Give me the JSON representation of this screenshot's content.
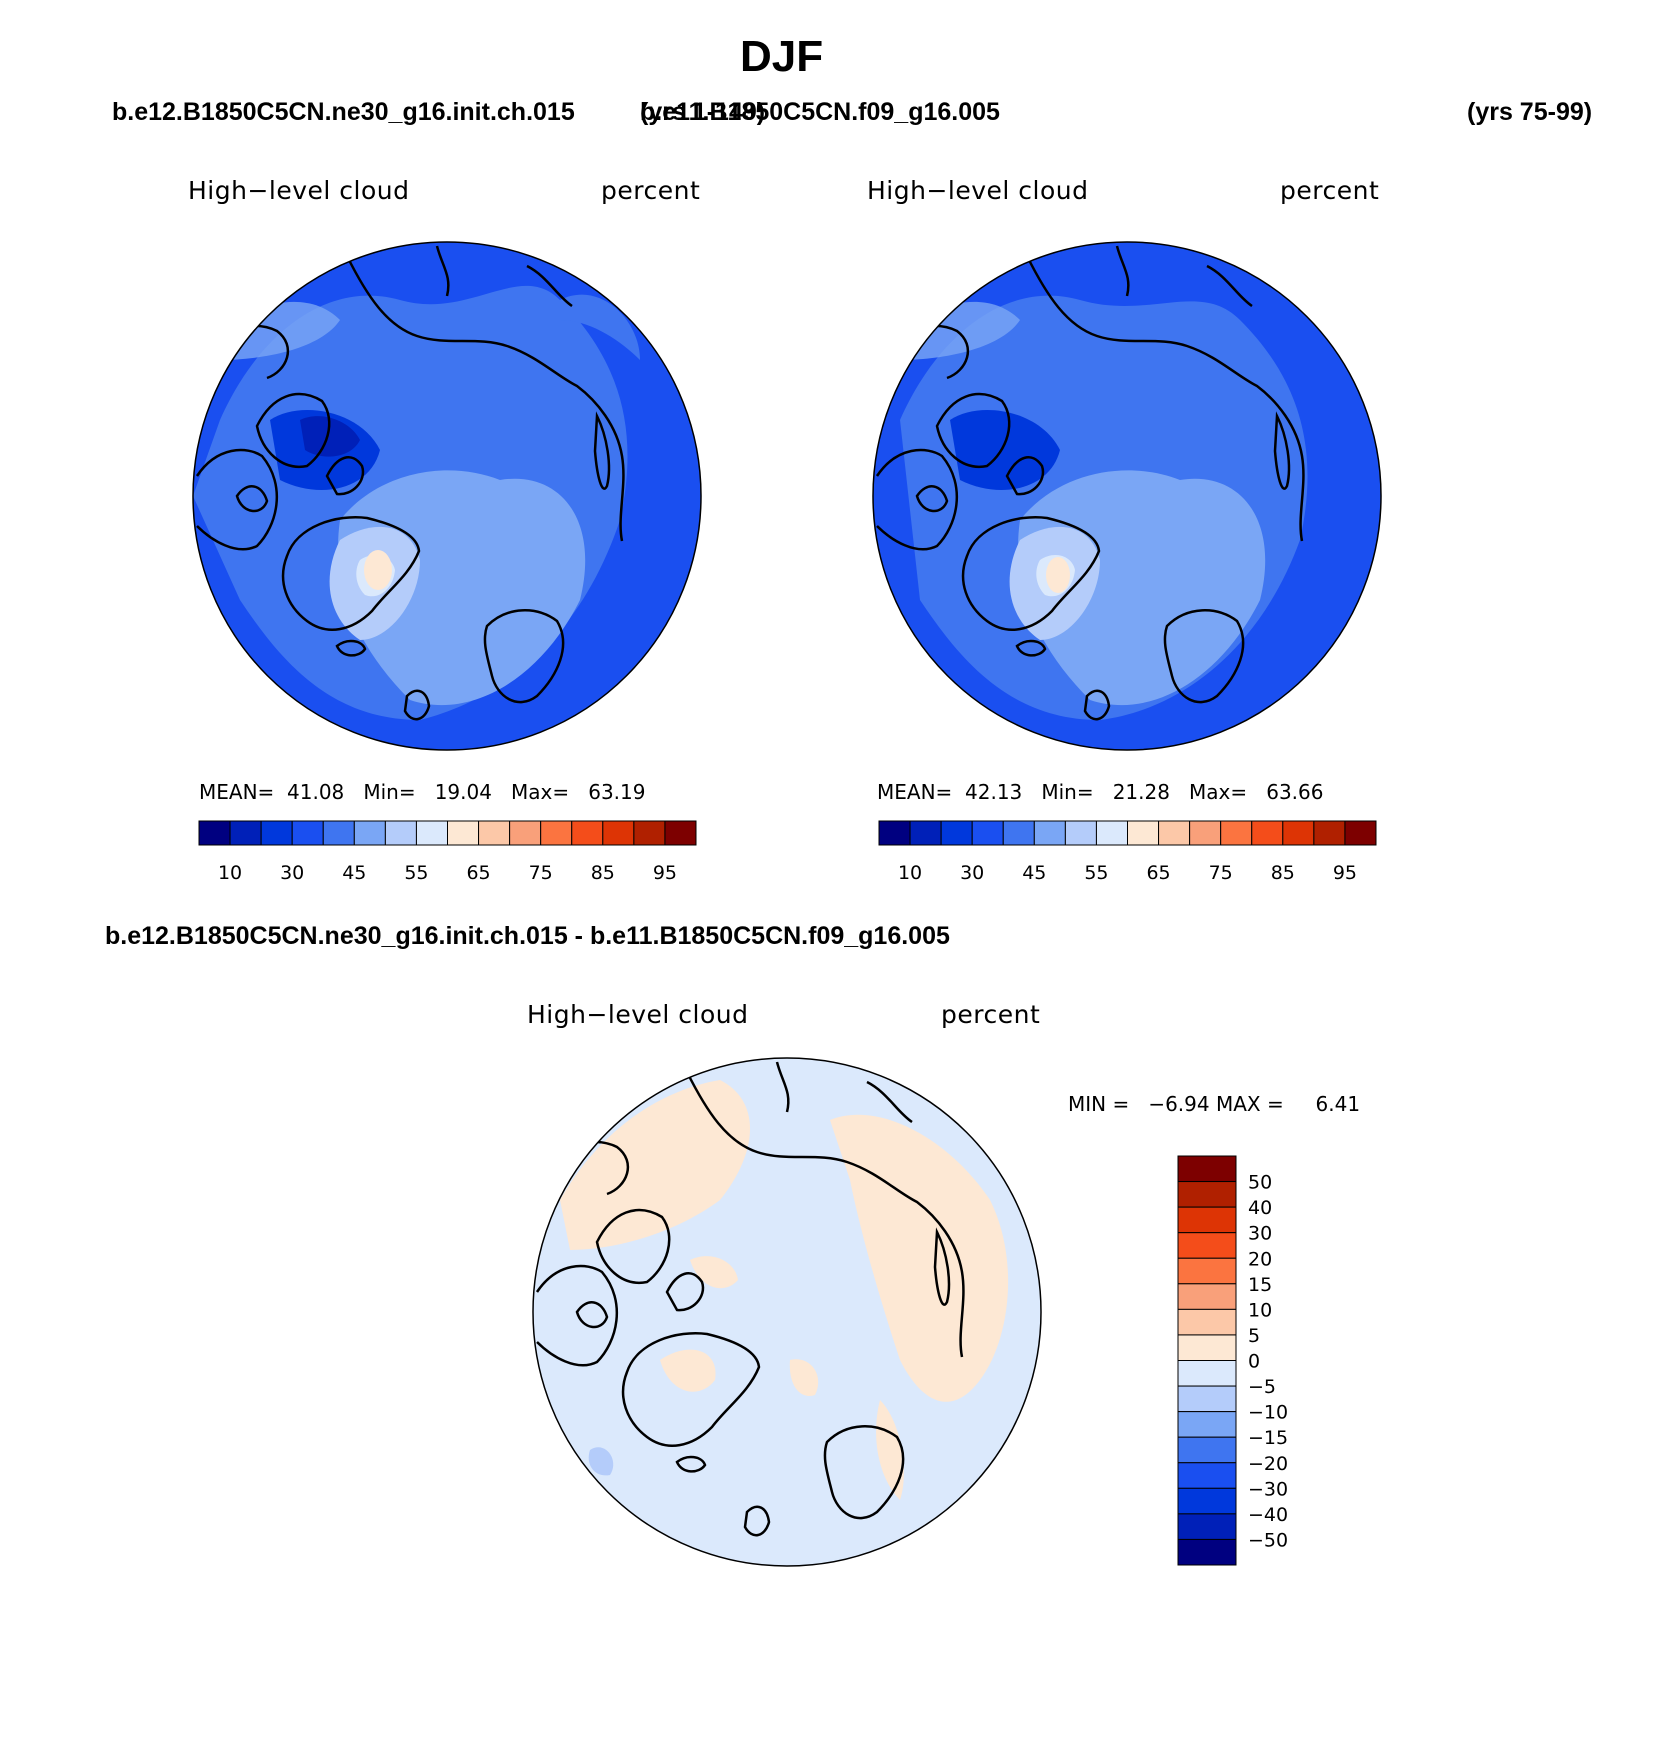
{
  "header": {
    "title": "DJF",
    "left_case": "b.e12.B1850C5CN.ne30_g16.init.ch.015",
    "left_years": "(yrs 1-149)",
    "right_case": "b.e11.B1850C5CN.f09_g16.005",
    "right_years": "(yrs 75-99)",
    "diff_title": "b.e12.B1850C5CN.ne30_g16.init.ch.015 - b.e11.B1850C5CN.f09_g16.005"
  },
  "panels": [
    {
      "variable": "High−level cloud",
      "units": "percent",
      "stats": {
        "mean_label": "MEAN=",
        "mean": "41.08",
        "min_label": "Min=",
        "min": "19.04",
        "max_label": "Max=",
        "max": "63.19"
      }
    },
    {
      "variable": "High−level cloud",
      "units": "percent",
      "stats": {
        "mean_label": "MEAN=",
        "mean": "42.13",
        "min_label": "Min=",
        "min": "21.28",
        "max_label": "Max=",
        "max": "63.66"
      }
    }
  ],
  "diff_panel": {
    "variable": "High−level cloud",
    "units": "percent",
    "min_label": "MIN =",
    "min": "−6.94",
    "max_label": "MAX =",
    "max": "6.41"
  },
  "colorbar": {
    "colors": [
      "#000080",
      "#0020b8",
      "#0038dc",
      "#1a4ff0",
      "#3f75f0",
      "#7aa6f5",
      "#b4ccfa",
      "#dbe9fc",
      "#fde8d4",
      "#fcc8a8",
      "#f9a07a",
      "#fb7440",
      "#f44d1a",
      "#dd3405",
      "#b02000",
      "#7d0000"
    ],
    "tick_labels": [
      "10",
      "30",
      "45",
      "55",
      "65",
      "75",
      "85",
      "95"
    ]
  },
  "diff_colorbar": {
    "colors": [
      "#7d0000",
      "#b02000",
      "#dd3405",
      "#f44d1a",
      "#fb7440",
      "#f9a07a",
      "#fcc8a8",
      "#fde8d4",
      "#dbe9fc",
      "#b4ccfa",
      "#7aa6f5",
      "#3f75f0",
      "#1a4ff0",
      "#0038dc",
      "#0020b8",
      "#000080"
    ],
    "tick_labels": [
      "50",
      "40",
      "30",
      "20",
      "15",
      "10",
      "5",
      "0",
      "−5",
      "−10",
      "−15",
      "−20",
      "−30",
      "−40",
      "−50"
    ]
  }
}
